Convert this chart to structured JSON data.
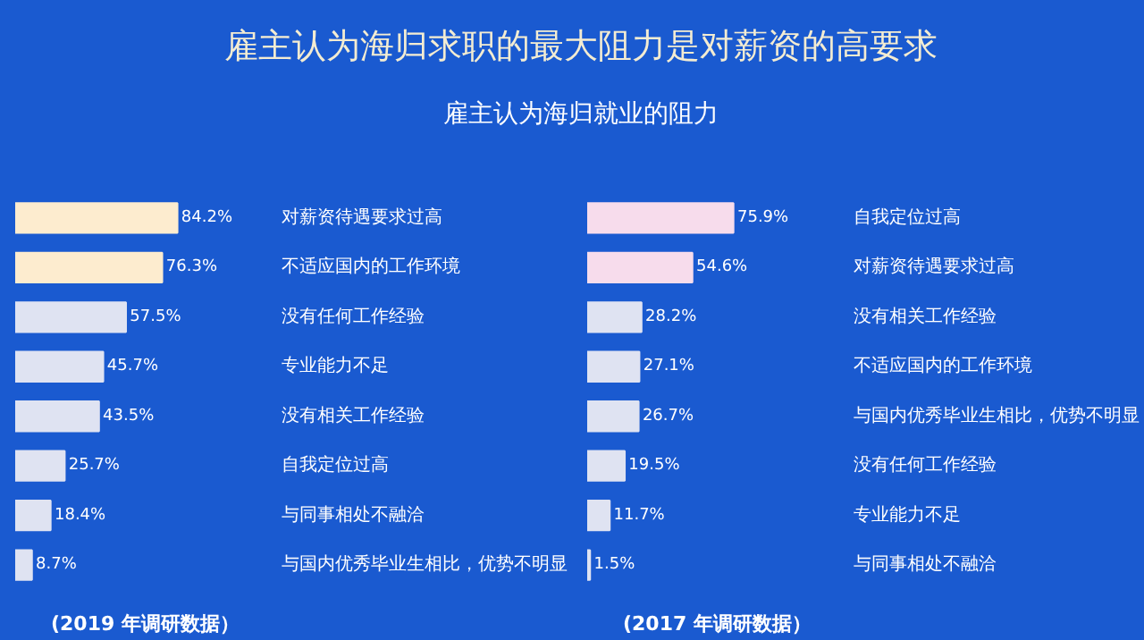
{
  "chart_data": [
    {
      "type": "bar",
      "orientation": "horizontal",
      "title": "雇主认为海归求职的最大阻力是对薪资的高要求",
      "subtitle": "雇主认为海归就业的阻力",
      "categories": [
        "对薪资待遇要求过高",
        "不适应国内的工作环境",
        "没有任何工作经验",
        "专业能力不足",
        "没有相关工作经验",
        "自我定位过高",
        "与同事相处不融洽",
        "与国内优秀毕业生相比，优势不明显"
      ],
      "values": [
        84.2,
        76.3,
        57.5,
        45.7,
        43.5,
        25.7,
        18.4,
        8.7
      ],
      "value_labels": [
        "84.2%",
        "76.3%",
        "57.5%",
        "45.7%",
        "43.5%",
        "25.7%",
        "18.4%",
        "8.7%"
      ],
      "colors": [
        "#fdeccf",
        "#fdeccf",
        "#dfe3f2",
        "#dfe3f2",
        "#dfe3f2",
        "#dfe3f2",
        "#dfe3f2",
        "#dfe3f2"
      ],
      "annotations": [
        "(2019 年调研数据）"
      ]
    },
    {
      "type": "bar",
      "orientation": "horizontal",
      "categories": [
        "自我定位过高",
        "对薪资待遇要求过高",
        "没有相关工作经验",
        "不适应国内的工作环境",
        "与国内优秀毕业生相比，优势不明显",
        "没有任何工作经验",
        "专业能力不足",
        "与同事相处不融洽"
      ],
      "values": [
        75.9,
        54.6,
        28.2,
        27.1,
        26.7,
        19.5,
        11.7,
        1.5
      ],
      "value_labels": [
        "75.9%",
        "54.6%",
        "28.2%",
        "27.1%",
        "26.7%",
        "19.5%",
        "11.7%",
        "1.5%"
      ],
      "colors": [
        "#f7dcec",
        "#f7dcec",
        "#dfe3f2",
        "#dfe3f2",
        "#dfe3f2",
        "#dfe3f2",
        "#dfe3f2",
        "#dfe3f2"
      ],
      "annotations": [
        "(2017 年调研数据）"
      ]
    }
  ]
}
